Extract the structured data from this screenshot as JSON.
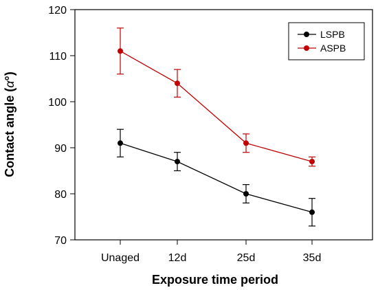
{
  "chart_data": {
    "type": "line",
    "title": "",
    "xlabel": "Exposure time period",
    "ylabel_main": "Contact angle (",
    "ylabel_symbol": "α",
    "ylabel_end": "°)",
    "ylim": [
      70,
      120
    ],
    "y_ticks": [
      70,
      80,
      90,
      100,
      110,
      120
    ],
    "categories": [
      "Unaged",
      "12d",
      "25d",
      "35d"
    ],
    "grid": false,
    "legend_position": "top-right",
    "series": [
      {
        "name": "LSPB",
        "color": "#000000",
        "values": [
          91,
          87,
          80,
          76
        ],
        "error": [
          3,
          2,
          2,
          3
        ]
      },
      {
        "name": "ASPB",
        "color": "#c00000",
        "values": [
          111,
          104,
          91,
          87
        ],
        "error": [
          5,
          3,
          2,
          1
        ]
      }
    ]
  }
}
